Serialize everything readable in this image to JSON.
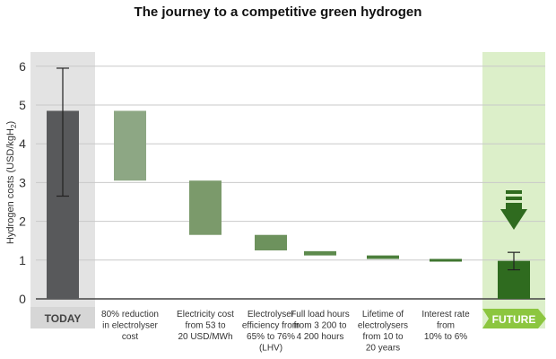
{
  "chart_data": {
    "type": "bar",
    "title": "The journey to a competitive green hydrogen",
    "ylabel": "Hydrogen costs (USD/kgH",
    "ylabel_subscript": "2",
    "ylabel_close": ")",
    "ylim": [
      0,
      6
    ],
    "yticks": [
      "0",
      "1",
      "2",
      "3",
      "4",
      "5",
      "6"
    ],
    "grid": true,
    "bars": [
      {
        "category": [
          "TODAY"
        ],
        "kind": "total",
        "low": 0,
        "high": 4.85,
        "error_low": 2.65,
        "error_high": 5.95,
        "color": "#58595b"
      },
      {
        "category": [
          "80% reduction",
          "in electrolyser",
          "cost"
        ],
        "kind": "step",
        "low": 3.05,
        "high": 4.85,
        "color": "#8da784"
      },
      {
        "category": [
          "Electricity cost",
          "from 53 to",
          "20 USD/MWh"
        ],
        "kind": "step",
        "low": 1.65,
        "high": 3.05,
        "color": "#7b9a6b"
      },
      {
        "category": [
          "Electrolyser",
          "efficiency from",
          "65% to 76%",
          "(LHV)"
        ],
        "kind": "step",
        "low": 1.25,
        "high": 1.65,
        "color": "#6d925d"
      },
      {
        "category": [
          "Full load hours",
          "from 3 200 to",
          "4 200 hours"
        ],
        "kind": "step",
        "low": 1.12,
        "high": 1.23,
        "color": "#5d8a4d"
      },
      {
        "category": [
          "Lifetime of",
          "electrolysers",
          "from 10 to",
          "20 years"
        ],
        "kind": "step",
        "low": 1.03,
        "high": 1.12,
        "color": "#4c7f3c"
      },
      {
        "category": [
          "Interest rate",
          "from",
          "10% to 6%"
        ],
        "kind": "step",
        "low": 0.98,
        "high": 1.03,
        "color": "#3f7530"
      },
      {
        "category": [
          "FUTURE"
        ],
        "kind": "total",
        "low": 0,
        "high": 0.98,
        "error_low": 0.75,
        "error_high": 1.2,
        "color": "#2f6b1f"
      }
    ],
    "highlight_colors": {
      "today_band": "#e3e3e3",
      "future_band": "#dcefc9",
      "future_label": "#8cc63f"
    }
  }
}
